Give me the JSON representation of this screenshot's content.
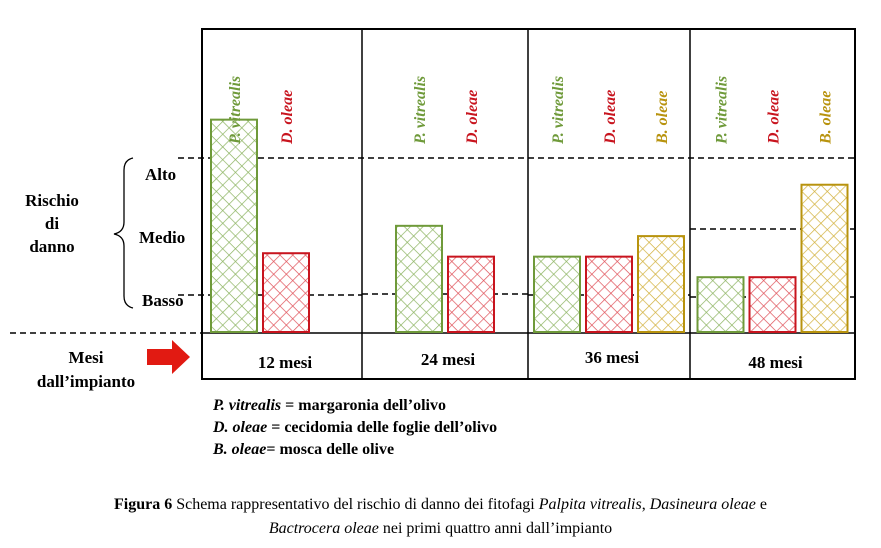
{
  "colors": {
    "p_vitrealis": "#6f9a3a",
    "d_oleae": "#c8141e",
    "b_oleae": "#b8930e",
    "arrow": "#e11a12",
    "ink": "#000000"
  },
  "risk_axis": {
    "title_lines": [
      "Rischio",
      "di",
      "danno"
    ],
    "levels": [
      "Alto",
      "Medio",
      "Basso"
    ]
  },
  "months_label_lines": [
    "Mesi",
    "dall’impianto"
  ],
  "chart_data": {
    "type": "bar",
    "categories": [
      "12 mesi",
      "24 mesi",
      "36 mesi",
      "48 mesi"
    ],
    "y_levels": [
      "Basso",
      "Medio",
      "Alto"
    ],
    "y_unit_note": "risk level scale: 1 = Basso, 2 = Medio, 3 = Alto (approximate bar heights)",
    "series": [
      {
        "name": "P. vitrealis",
        "color": "#6f9a3a",
        "values": [
          3.1,
          1.55,
          1.1,
          0.8
        ]
      },
      {
        "name": "D. oleae",
        "color": "#c8141e",
        "values": [
          1.15,
          1.1,
          1.1,
          0.8
        ]
      },
      {
        "name": "B. oleae",
        "color": "#b8930e",
        "values": [
          null,
          null,
          1.4,
          2.15
        ]
      }
    ],
    "ylim": [
      0,
      3.4
    ]
  },
  "legend_notes": [
    {
      "species": "P. vitrealis",
      "description": " = margaronia dell’olivo"
    },
    {
      "species": "D. oleae",
      "description": " = cecidomia delle foglie dell’olivo"
    },
    {
      "species": "B. oleae",
      "description": "= mosca delle olive"
    }
  ],
  "caption": {
    "label": "Figura 6",
    "line1_text": " Schema rappresentativo del rischio di danno dei fitofagi ",
    "sp1": "Palpita vitrealis",
    "sep1": ", ",
    "sp2": "Dasineura oleae",
    "sep2": " e",
    "sp3": "Bactrocera oleae",
    "line2_text": " nei primi quattro anni dall’impianto"
  }
}
